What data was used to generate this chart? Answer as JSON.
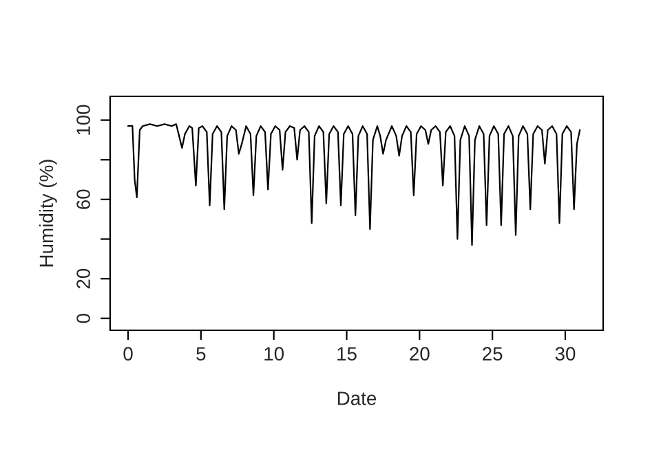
{
  "chart_data": {
    "type": "line",
    "xlabel": "Date",
    "ylabel": "Humidity (%)",
    "x": [
      0,
      0.3,
      0.45,
      0.6,
      0.8,
      1,
      1.5,
      2,
      2.5,
      3,
      3.3,
      3.5,
      3.7,
      3.9,
      4.2,
      4.4,
      4.65,
      4.85,
      5.1,
      5.4,
      5.6,
      5.8,
      6.1,
      6.4,
      6.6,
      6.8,
      7.1,
      7.4,
      7.6,
      7.8,
      8.1,
      8.4,
      8.6,
      8.8,
      9.1,
      9.4,
      9.6,
      9.8,
      10.1,
      10.4,
      10.6,
      10.8,
      11.1,
      11.4,
      11.6,
      11.8,
      12.1,
      12.4,
      12.6,
      12.8,
      13.1,
      13.4,
      13.6,
      13.8,
      14.1,
      14.4,
      14.6,
      14.8,
      15.1,
      15.4,
      15.6,
      15.8,
      16.1,
      16.4,
      16.6,
      16.8,
      17.1,
      17.3,
      17.5,
      17.7,
      18.1,
      18.4,
      18.6,
      18.8,
      19.1,
      19.4,
      19.6,
      19.8,
      20.1,
      20.4,
      20.6,
      20.8,
      21.1,
      21.4,
      21.6,
      21.8,
      22.1,
      22.4,
      22.6,
      22.8,
      23.1,
      23.4,
      23.6,
      23.8,
      24.1,
      24.4,
      24.6,
      24.8,
      25.1,
      25.4,
      25.6,
      25.8,
      26.1,
      26.4,
      26.6,
      26.8,
      27.1,
      27.4,
      27.6,
      27.8,
      28.1,
      28.4,
      28.6,
      28.8,
      29.1,
      29.4,
      29.6,
      29.8,
      30.1,
      30.4,
      30.6,
      30.8,
      31
    ],
    "values": [
      97,
      97,
      70,
      61,
      95,
      97,
      98,
      97,
      98,
      97,
      98,
      92,
      86,
      93,
      97,
      96,
      67,
      96,
      97,
      94,
      57,
      93,
      97,
      94,
      55,
      92,
      97,
      95,
      83,
      88,
      97,
      93,
      62,
      92,
      97,
      94,
      65,
      93,
      97,
      95,
      75,
      94,
      97,
      96,
      80,
      95,
      97,
      94,
      48,
      92,
      97,
      94,
      58,
      93,
      97,
      94,
      57,
      93,
      97,
      93,
      52,
      92,
      97,
      93,
      45,
      90,
      97,
      92,
      83,
      90,
      97,
      92,
      82,
      92,
      97,
      94,
      62,
      93,
      97,
      95,
      88,
      95,
      97,
      94,
      67,
      94,
      97,
      92,
      40,
      90,
      97,
      92,
      37,
      90,
      97,
      93,
      47,
      92,
      97,
      93,
      47,
      93,
      97,
      92,
      42,
      92,
      97,
      93,
      55,
      93,
      97,
      95,
      78,
      95,
      97,
      93,
      48,
      93,
      97,
      94,
      55,
      88,
      95
    ],
    "color": "#000000",
    "xlim": [
      -1.23,
      32.6
    ],
    "ylim": [
      -6,
      112
    ],
    "xticks": [
      0,
      5,
      10,
      15,
      20,
      25,
      30
    ],
    "yticks": [
      0,
      20,
      {
        "value": 40,
        "label": null
      },
      60,
      {
        "value": 80,
        "label": null
      },
      100
    ],
    "grid": false,
    "legend": false,
    "marker": "none",
    "line_style": "solid"
  }
}
